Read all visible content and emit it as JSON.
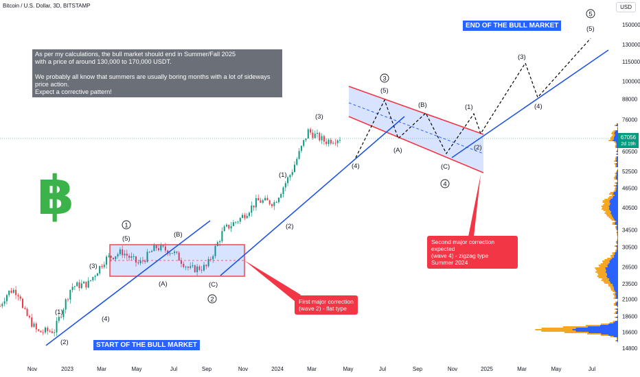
{
  "header": {
    "symbol": "Bitcoin / U.S. Dollar, 3D, BITSTAMP",
    "currency": "USD"
  },
  "note": {
    "line1": "As per my calculations, the bull market should end in Summer/Fall 2025",
    "line2": "with a price of around 130,000 to 170,000 USDT.",
    "line3": "We probably all know that summers are usually boring months with a lot of sideways price action.",
    "line4": "Expect a corrective pattern!"
  },
  "labels": {
    "start": "START OF THE BULL MARKET",
    "end": "END OF THE BULL MARKET"
  },
  "callouts": {
    "first": [
      "First major correction",
      "(wave 2) - flat type"
    ],
    "second": [
      "Second major correction expected",
      "(wave 4) - zigzag type",
      "Summer 2024"
    ]
  },
  "logo": {
    "glyph": "฿",
    "color": "#3cb34a"
  },
  "colors": {
    "up": "#089981",
    "down": "#f23645",
    "trend": "#1e53e5",
    "channel": "#f23645",
    "fill": "#2962ff",
    "volume": "#f5a623",
    "volume2": "#2962ff"
  },
  "chart_data": {
    "type": "candlestick",
    "y_scale": "log",
    "y_ticks": [
      150000,
      130000,
      115000,
      100000,
      88000,
      76000,
      60500,
      52500,
      46500,
      40500,
      34500,
      30500,
      26500,
      23500,
      21000,
      18600,
      16600,
      14800
    ],
    "x_ticks": [
      "Nov",
      "2023",
      "Mar",
      "May",
      "Jul",
      "Sep",
      "Nov",
      "2024",
      "Mar",
      "May",
      "Jul",
      "Sep",
      "Nov",
      "2025",
      "Mar",
      "May",
      "Jul"
    ],
    "last_price": {
      "value": "67056",
      "countdown": "2d 19h"
    },
    "price_series": [
      {
        "date": "2022-10",
        "price": 20000
      },
      {
        "date": "2022-11",
        "price": 16600
      },
      {
        "date": "2022-12",
        "price": 16800
      },
      {
        "date": "2023-01",
        "price": 23000
      },
      {
        "date": "2023-02",
        "price": 23500
      },
      {
        "date": "2023-03",
        "price": 28000
      },
      {
        "date": "2023-04",
        "price": 29500
      },
      {
        "date": "2023-05",
        "price": 27000
      },
      {
        "date": "2023-06",
        "price": 30500
      },
      {
        "date": "2023-07",
        "price": 29500
      },
      {
        "date": "2023-08",
        "price": 26000
      },
      {
        "date": "2023-09",
        "price": 26500
      },
      {
        "date": "2023-10",
        "price": 34500
      },
      {
        "date": "2023-11",
        "price": 37500
      },
      {
        "date": "2023-12",
        "price": 42500
      },
      {
        "date": "2024-01",
        "price": 42000
      },
      {
        "date": "2024-02",
        "price": 52000
      },
      {
        "date": "2024-03",
        "price": 70000
      },
      {
        "date": "2024-04",
        "price": 65000
      },
      {
        "date": "2024-05",
        "price": 67056
      }
    ],
    "wave_labels": [
      "(1)",
      "(2)",
      "(3)",
      "(4)",
      "(5)",
      "(A)",
      "(B)",
      "(C)",
      "(1)",
      "(2)",
      "(3)",
      "(4)",
      "(5)",
      "(A)",
      "(B)",
      "(C)",
      "(1)",
      "(2)",
      "(3)",
      "(4)",
      "(5)"
    ],
    "major_waves": [
      "1",
      "2",
      "3",
      "4",
      "5"
    ]
  }
}
